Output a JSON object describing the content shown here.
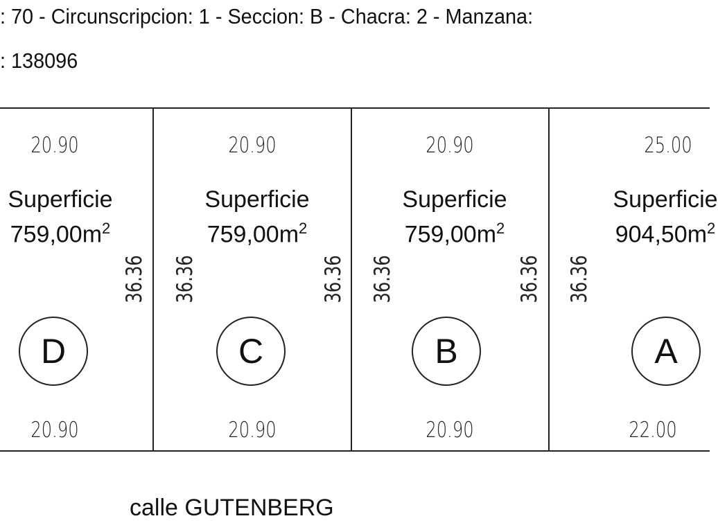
{
  "header": {
    "line1": ": 70 - Circunscripcion: 1 - Seccion: B - Chacra: 2 - Manzana:",
    "line2": ": 138096"
  },
  "lots": [
    {
      "letter": "D",
      "front": "20.90",
      "back": "20.90",
      "left_side": "",
      "right_side": "36.36",
      "label": "Superficie",
      "area": "759,00m",
      "area_sup": "2"
    },
    {
      "letter": "C",
      "front": "20.90",
      "back": "20.90",
      "left_side": "36.36",
      "right_side": "36.36",
      "label": "Superficie",
      "area": "759,00m",
      "area_sup": "2"
    },
    {
      "letter": "B",
      "front": "20.90",
      "back": "20.90",
      "left_side": "36.36",
      "right_side": "36.36",
      "label": "Superficie",
      "area": "759,00m",
      "area_sup": "2"
    },
    {
      "letter": "A",
      "front": "22.00",
      "back": "25.00",
      "left_side": "36.36",
      "right_side": "",
      "label": "Superficie",
      "area": "904,50m",
      "area_sup": "2"
    }
  ],
  "street": "calle GUTENBERG"
}
